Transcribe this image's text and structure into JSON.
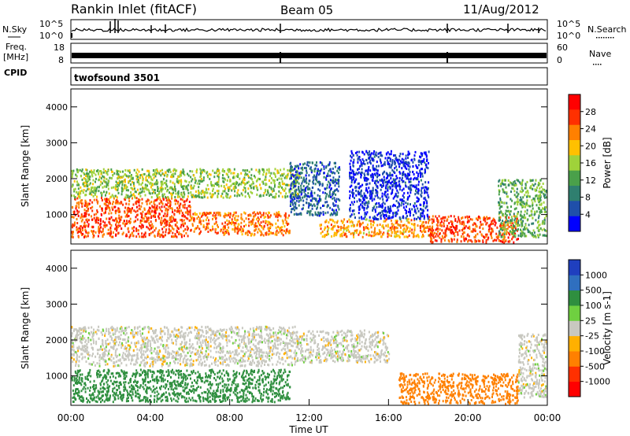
{
  "header": {
    "station": "Rankin Inlet (fitACF)",
    "beam": "Beam 05",
    "date": "11/Aug/2012"
  },
  "side_labels": {
    "nsky": "N.Sky",
    "nsearch": "N.Search",
    "freq": "Freq.",
    "mhz": "[MHz]",
    "nave": "Nave",
    "cpid": "CPID"
  },
  "noise_panel": {
    "left_ticks": [
      "10^5",
      "10^0"
    ],
    "right_ticks": [
      "10^5",
      "10^0"
    ]
  },
  "freq_panel": {
    "left_ticks": [
      "18",
      "8"
    ],
    "right_ticks": [
      "60",
      "0"
    ]
  },
  "cpid_label": "twofsound 3501",
  "colors": {
    "power_scale": [
      "#0000ff",
      "#1f4faa",
      "#2f7f6f",
      "#4aa04a",
      "#9fd23a",
      "#ffc000",
      "#ff8000",
      "#ff3000",
      "#ff0000"
    ],
    "velocity_scale": [
      "#ff0000",
      "#ff3000",
      "#ff8000",
      "#ffb000",
      "#c8c8c0",
      "#6fd040",
      "#2f8f3f",
      "#2f6fbf",
      "#1f3fbf"
    ]
  },
  "chart_data": [
    {
      "type": "heatmap",
      "name": "power",
      "xlabel": "",
      "ylabel": "Slant Range [km]",
      "x_range": [
        "00:00",
        "00:00"
      ],
      "ylim": [
        180,
        4500
      ],
      "y_ticks": [
        "1000",
        "2000",
        "3000",
        "4000"
      ],
      "colorbar_label": "Power [dB]",
      "colorbar_ticks": [
        "4",
        "8",
        "12",
        "16",
        "20",
        "24",
        "28"
      ],
      "regions": [
        {
          "x": [
            0.0,
            6.0
          ],
          "y": [
            400,
            1500
          ],
          "value": 26
        },
        {
          "x": [
            6.0,
            11.0
          ],
          "y": [
            450,
            1100
          ],
          "value": 24
        },
        {
          "x": [
            12.5,
            18.0
          ],
          "y": [
            400,
            900
          ],
          "value": 22
        },
        {
          "x": [
            18.0,
            22.5
          ],
          "y": [
            250,
            1000
          ],
          "value": 26
        },
        {
          "x": [
            0.0,
            11.5
          ],
          "y": [
            1500,
            2300
          ],
          "value": 16
        },
        {
          "x": [
            11.0,
            13.5
          ],
          "y": [
            1000,
            2500
          ],
          "value": 8
        },
        {
          "x": [
            14.0,
            18.0
          ],
          "y": [
            900,
            2800
          ],
          "value": 5
        },
        {
          "x": [
            21.5,
            24.0
          ],
          "y": [
            400,
            2000
          ],
          "value": 14
        }
      ]
    },
    {
      "type": "heatmap",
      "name": "velocity",
      "xlabel": "Time UT",
      "ylabel": "Slant Range [km]",
      "x_range": [
        "00:00",
        "00:00"
      ],
      "x_ticks": [
        "00:00",
        "04:00",
        "08:00",
        "12:00",
        "16:00",
        "20:00",
        "00:00"
      ],
      "ylim": [
        180,
        4500
      ],
      "y_ticks": [
        "1000",
        "2000",
        "3000",
        "4000"
      ],
      "colorbar_label": "Velocity [m s-1]",
      "colorbar_ticks": [
        "1000",
        "500",
        "100",
        "25",
        "-25",
        "-100",
        "-500",
        "-1000"
      ],
      "regions": [
        {
          "x": [
            0.0,
            11.0
          ],
          "y": [
            300,
            1200
          ],
          "value": 150
        },
        {
          "x": [
            0.0,
            11.5
          ],
          "y": [
            1300,
            2400
          ],
          "value": 0
        },
        {
          "x": [
            11.5,
            16.0
          ],
          "y": [
            1400,
            2300
          ],
          "value": 0
        },
        {
          "x": [
            16.5,
            22.5
          ],
          "y": [
            250,
            1100
          ],
          "value": -400
        },
        {
          "x": [
            22.5,
            24.0
          ],
          "y": [
            400,
            2200
          ],
          "value": 0
        }
      ]
    }
  ]
}
